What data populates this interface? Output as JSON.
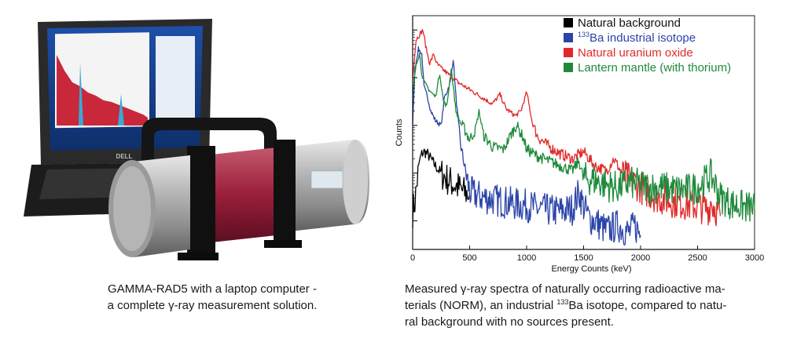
{
  "left_panel": {
    "laptop_brand": "DELL",
    "caption_line1": "GAMMA-RAD5 with a laptop computer -",
    "caption_line2": "a complete γ-ray measurement solution."
  },
  "right_panel": {
    "caption_line1_prefix": "Measured γ-ray spectra of naturally occurring radioactive ma-",
    "caption_line2_a": "terials (NORM), an industrial ",
    "caption_line2_sup": "133",
    "caption_line2_b": "Ba isotope, compared to natu-",
    "caption_line3": "ral background with no sources present."
  },
  "chart_data": {
    "type": "line",
    "title": "",
    "xlabel": "Energy Counts (keV)",
    "ylabel": "Counts",
    "xlim": [
      0,
      3000
    ],
    "y_scale": "log",
    "xticks": [
      "0",
      "500",
      "1000",
      "1500",
      "2000",
      "2500",
      "3000"
    ],
    "legend_position": "top-right",
    "series": [
      {
        "name": "Natural background",
        "legend_sup": "",
        "legend_text": "Natural background",
        "color": "#000000",
        "x": [
          0,
          20,
          40,
          60,
          80,
          100,
          130,
          160,
          200,
          250,
          300,
          350,
          400,
          450,
          500
        ],
        "y": [
          0.2,
          0.4,
          0.85,
          1.25,
          1.4,
          1.45,
          1.4,
          1.3,
          1.15,
          1.0,
          0.88,
          0.78,
          0.7,
          0.6,
          0.55
        ]
      },
      {
        "name": "133Ba industrial isotope",
        "legend_sup": "133",
        "legend_text": "Ba industrial isotope",
        "color": "#2b44a8",
        "x": [
          0,
          20,
          50,
          80,
          100,
          130,
          160,
          200,
          250,
          280,
          300,
          330,
          356,
          380,
          420,
          460,
          500,
          600,
          700,
          800,
          900,
          1000,
          1100,
          1200,
          1300,
          1400,
          1460,
          1500,
          1550,
          1600,
          1700,
          1800,
          1900,
          1950,
          2000
        ],
        "y": [
          2.0,
          3.2,
          3.6,
          3.5,
          2.8,
          2.6,
          2.3,
          2.1,
          2.0,
          2.6,
          2.7,
          2.9,
          3.4,
          2.6,
          1.6,
          1.1,
          0.6,
          0.5,
          0.45,
          0.4,
          0.35,
          0.32,
          0.25,
          0.22,
          0.2,
          0.25,
          0.6,
          0.3,
          0.05,
          0.0,
          -0.2,
          -0.1,
          -0.25,
          -0.1,
          -0.3
        ]
      },
      {
        "name": "Natural uranium oxide",
        "legend_sup": "",
        "legend_text": "Natural uranium oxide",
        "color": "#e02a2a",
        "x": [
          0,
          30,
          60,
          90,
          120,
          150,
          186,
          210,
          250,
          300,
          350,
          400,
          500,
          600,
          700,
          766,
          820,
          900,
          950,
          1001,
          1050,
          1100,
          1200,
          1300,
          1400,
          1500,
          1600,
          1700,
          1764,
          1850,
          1950,
          2000,
          2100,
          2200,
          2300,
          2400,
          2500,
          2600,
          2614,
          2700
        ],
        "y": [
          3.0,
          3.8,
          3.9,
          4.0,
          3.6,
          3.3,
          3.5,
          3.3,
          3.2,
          3.1,
          3.0,
          2.9,
          2.75,
          2.6,
          2.45,
          2.65,
          2.35,
          2.2,
          2.3,
          2.7,
          2.05,
          1.75,
          1.55,
          1.4,
          1.3,
          1.45,
          1.15,
          1.05,
          1.3,
          0.95,
          0.8,
          0.7,
          0.55,
          0.45,
          0.4,
          0.35,
          0.3,
          0.25,
          0.4,
          0.1
        ]
      },
      {
        "name": "Lantern mantle (with thorium)",
        "legend_sup": "",
        "legend_text": "Lantern mantle (with thorium)",
        "color": "#1f8a3c",
        "x": [
          0,
          30,
          60,
          80,
          100,
          130,
          160,
          200,
          238,
          270,
          300,
          338,
          380,
          420,
          460,
          500,
          550,
          583,
          620,
          700,
          800,
          860,
          911,
          969,
          1000,
          1100,
          1200,
          1300,
          1400,
          1460,
          1500,
          1600,
          1700,
          1800,
          1900,
          2000,
          2100,
          2200,
          2300,
          2400,
          2500,
          2614,
          2650,
          2700,
          2800,
          2900,
          3000
        ],
        "y": [
          2.6,
          3.3,
          3.5,
          3.1,
          2.9,
          2.8,
          2.7,
          2.6,
          3.1,
          2.5,
          2.4,
          3.2,
          2.3,
          2.05,
          1.9,
          1.7,
          1.9,
          2.3,
          1.8,
          1.55,
          1.5,
          1.8,
          2.0,
          1.75,
          1.5,
          1.35,
          1.25,
          1.15,
          1.05,
          1.25,
          0.9,
          0.85,
          0.75,
          0.7,
          0.8,
          0.75,
          0.7,
          0.7,
          0.65,
          0.65,
          0.7,
          0.95,
          0.8,
          0.5,
          0.35,
          0.3,
          0.25
        ]
      }
    ]
  }
}
